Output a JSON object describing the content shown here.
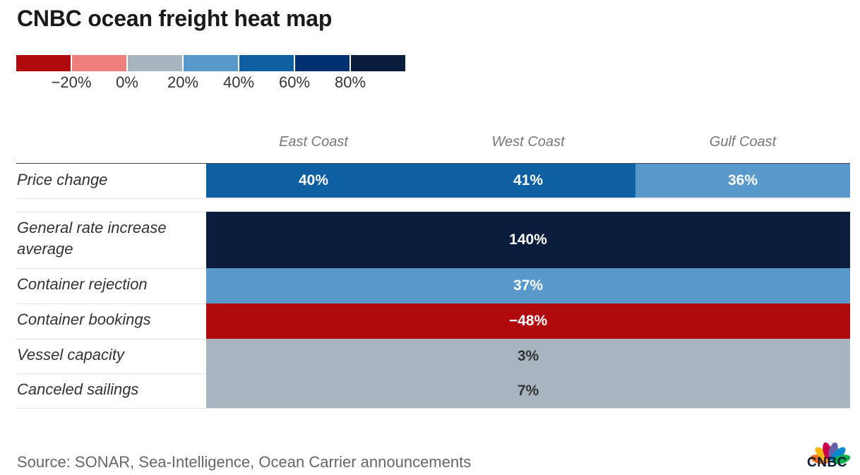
{
  "title": "CNBC ocean freight heat map",
  "legend": {
    "colors": [
      "#b0090e",
      "#ee7f7d",
      "#a8b5c1",
      "#5898cb",
      "#0f60a3",
      "#003070",
      "#0b1d3c"
    ],
    "ticks": [
      "−20%",
      "0%",
      "20%",
      "40%",
      "60%",
      "80%"
    ]
  },
  "chart_data": {
    "type": "heatmap",
    "title": "CNBC ocean freight heat map",
    "columns": [
      "East Coast",
      "West Coast",
      "Gulf Coast"
    ],
    "rows": [
      {
        "label": "Price change",
        "cells": [
          {
            "value": 40,
            "text": "40%",
            "color": "#0f60a3",
            "text_color": "#ffffff"
          },
          {
            "value": 41,
            "text": "41%",
            "color": "#0f60a3",
            "text_color": "#ffffff"
          },
          {
            "value": 36,
            "text": "36%",
            "color": "#5898cb",
            "text_color": "#ffffff"
          }
        ]
      },
      {
        "label": "General rate increase average",
        "cells": [
          {
            "value": 140,
            "text": "140%",
            "color": "#0b1d3c",
            "text_color": "#ffffff",
            "span": 3
          }
        ]
      },
      {
        "label": "Container rejection",
        "cells": [
          {
            "value": 37,
            "text": "37%",
            "color": "#5898cb",
            "text_color": "#ffffff",
            "span": 3
          }
        ]
      },
      {
        "label": "Container bookings",
        "cells": [
          {
            "value": -48,
            "text": "−48%",
            "color": "#b0090e",
            "text_color": "#ffffff",
            "span": 3
          }
        ]
      },
      {
        "label": "Vessel capacity",
        "cells": [
          {
            "value": 3,
            "text": "3%",
            "color": "#a8b5c1",
            "text_color": "#333333",
            "span": 3
          }
        ]
      },
      {
        "label": "Canceled sailings",
        "cells": [
          {
            "value": 7,
            "text": "7%",
            "color": "#a8b5c1",
            "text_color": "#333333",
            "span": 3
          }
        ]
      }
    ]
  },
  "source": "Source: SONAR, Sea-Intelligence, Ocean Carrier announcements",
  "logo": {
    "text": "CNBC",
    "peacock_colors": [
      "#f37021",
      "#fcb711",
      "#cc004c",
      "#6460aa",
      "#0089d0",
      "#0db14b"
    ]
  }
}
